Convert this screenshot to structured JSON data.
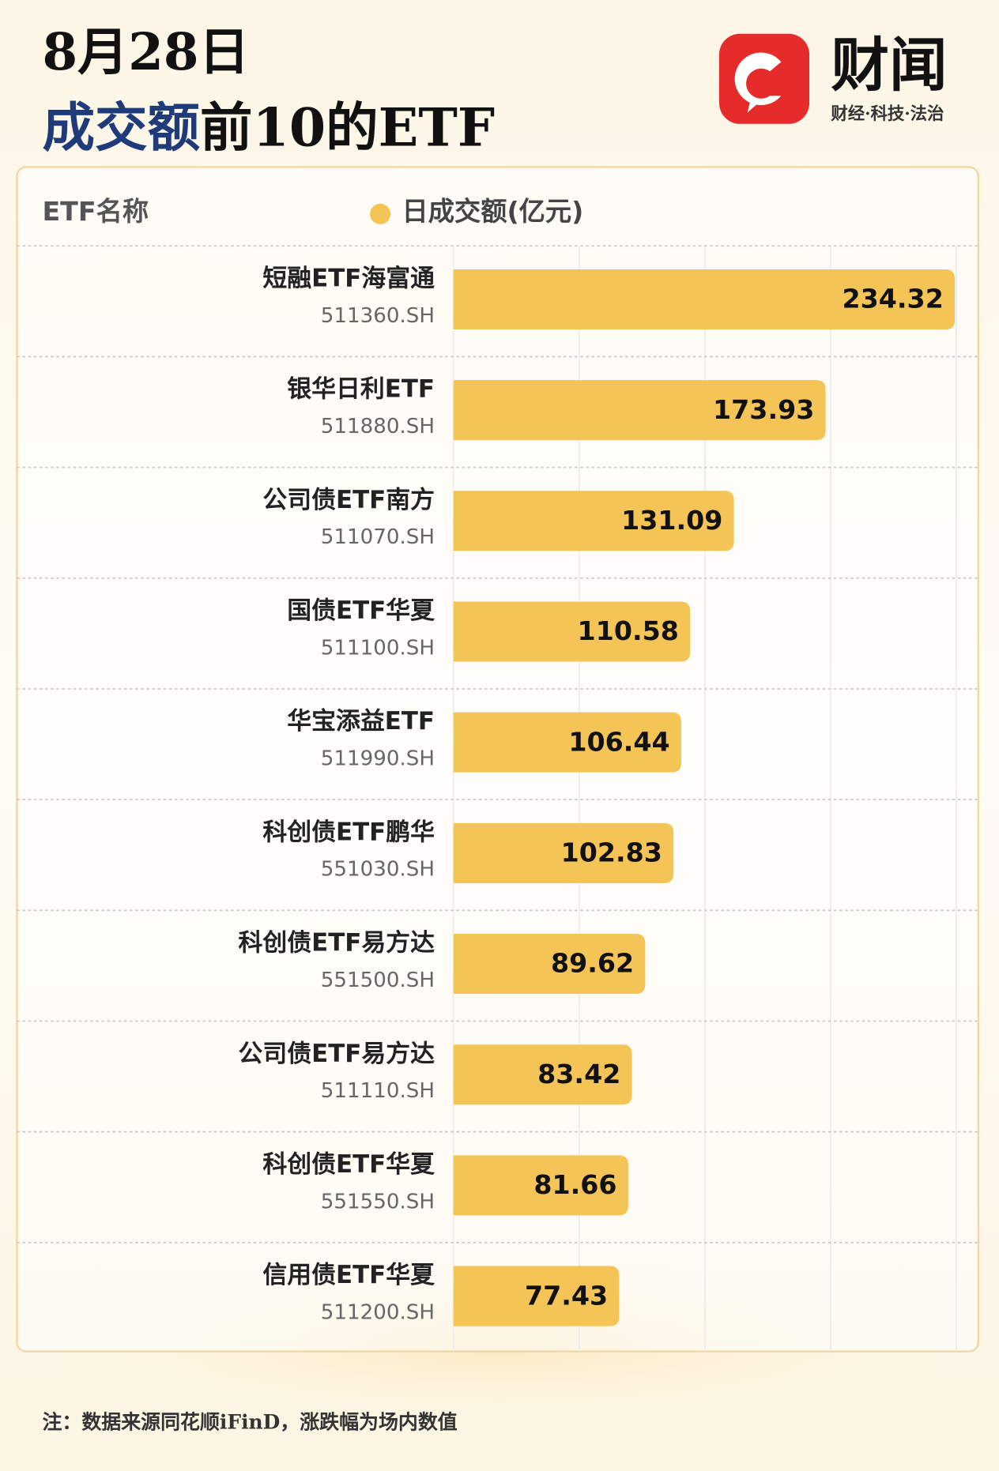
{
  "chart_data": {
    "type": "bar",
    "orientation": "horizontal",
    "date": "8月28日",
    "title_parts": [
      "成交额",
      "前10的ETF"
    ],
    "brand": "财闻",
    "brand_slogan": "财经·科技·法治",
    "category_header": "ETF名称",
    "categories": [
      "短融ETF海富通",
      "银华日利ETF",
      "公司债ETF南方",
      "国债ETF华夏",
      "华宝添益ETF",
      "科创债ETF鹏华",
      "科创债ETF易方达",
      "公司债ETF易方达",
      "科创债ETF华夏",
      "信用债ETF华夏"
    ],
    "codes": [
      "511360.SH",
      "511880.SH",
      "511070.SH",
      "511100.SH",
      "511990.SH",
      "551030.SH",
      "551500.SH",
      "511110.SH",
      "551550.SH",
      "511200.SH"
    ],
    "series": [
      {
        "name": "日成交额(亿元)",
        "color": "#f5c456",
        "values": [
          234.32,
          173.93,
          131.09,
          110.58,
          106.44,
          102.83,
          89.62,
          83.42,
          81.66,
          77.43
        ]
      }
    ],
    "xlim": [
      0,
      235
    ],
    "grid": true,
    "footnote": "注：数据来源同花顺iFinD，涨跌幅为场内数值"
  }
}
